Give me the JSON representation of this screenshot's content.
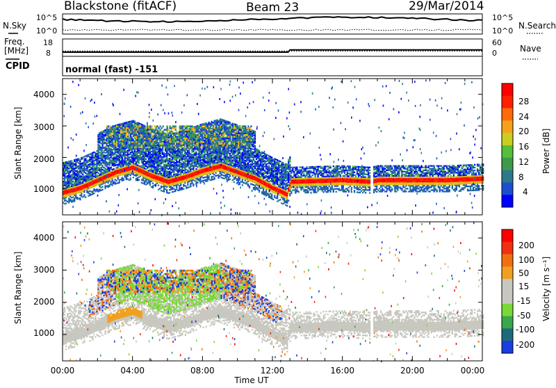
{
  "header": {
    "station": "Blackstone (fitACF)",
    "beam": "Beam 23",
    "date": "29/Mar/2014"
  },
  "left_labels": {
    "nsky": "N.Sky",
    "freq": "Freq.",
    "freq_unit": "[MHz]",
    "cpid": "CPID"
  },
  "right_labels": {
    "nsearch": "N.Search",
    "nave": "Nave"
  },
  "cpid_text": "normal (fast) -151",
  "noise_panel": {
    "left_ticks": [
      "10^5",
      "10^0"
    ],
    "right_ticks": [
      "10^5",
      "10^0"
    ]
  },
  "freq_panel": {
    "left_ticks": [
      "18",
      "8"
    ],
    "right_ticks": [
      "60",
      "0"
    ]
  },
  "x_axis": {
    "title": "Time UT",
    "ticks": [
      "00:00",
      "04:00",
      "08:00",
      "12:00",
      "16:00",
      "20:00",
      "00:00"
    ]
  },
  "power_panel": {
    "ylabel": "Slant Range [km]",
    "yticks": [
      "4000",
      "3000",
      "2000",
      "1000"
    ],
    "colorbar_label": "Power [dB]",
    "colorbar_ticks": [
      "28",
      "24",
      "20",
      "16",
      "12",
      "8",
      "4"
    ],
    "colors": [
      "#0000ff",
      "#1c4fcf",
      "#2a7a8a",
      "#3c9a4a",
      "#56bf3a",
      "#c8cf20",
      "#f3a31a",
      "#ff6a0a",
      "#ff2000",
      "#ff0000"
    ]
  },
  "velocity_panel": {
    "ylabel": "Slant Range [km]",
    "yticks": [
      "4000",
      "3000",
      "2000",
      "1000"
    ],
    "colorbar_label": "Velocity [m s⁻¹]",
    "colorbar_ticks": [
      "200",
      "100",
      "50",
      "15",
      "-15",
      "-50",
      "-100",
      "-200"
    ],
    "colors": [
      "#1a3ce0",
      "#1f6a7a",
      "#38a84a",
      "#7ad838",
      "#c8c8c0",
      "#c8c8c0",
      "#f0a020",
      "#f07010",
      "#f03010",
      "#ff0000"
    ]
  },
  "chart_data": {
    "type": "heatmap",
    "title": "Blackstone (fitACF)  Beam 23  29/Mar/2014",
    "xlabel": "Time UT",
    "ylabel": "Slant Range [km]",
    "x_range_hours": [
      0,
      24
    ],
    "y_range_km": [
      180,
      4500
    ],
    "x_ticks": [
      "00:00",
      "04:00",
      "08:00",
      "12:00",
      "16:00",
      "20:00",
      "00:00"
    ],
    "y_ticks": [
      1000,
      2000,
      3000,
      4000
    ],
    "panels": [
      {
        "name": "Power [dB]",
        "colorbar_range": [
          0,
          32
        ],
        "colorbar_ticks": [
          4,
          8,
          12,
          16,
          20,
          24,
          28
        ],
        "main_echo_band": {
          "time_h": [
            0,
            1,
            2,
            3,
            4,
            5,
            6,
            7,
            8,
            9,
            10,
            11,
            12,
            12.8,
            13,
            16,
            17.6,
            18,
            20,
            22,
            24
          ],
          "range_km": [
            850,
            1000,
            1250,
            1500,
            1650,
            1400,
            1200,
            1350,
            1550,
            1700,
            1500,
            1300,
            1000,
            800,
            1200,
            1250,
            1200,
            1250,
            1250,
            1250,
            1300
          ]
        }
      },
      {
        "name": "Velocity [m s-1]",
        "colorbar_range": [
          -250,
          250
        ],
        "colorbar_ticks": [
          -200,
          -100,
          -50,
          -15,
          15,
          50,
          100,
          200
        ]
      }
    ],
    "freq_mhz": {
      "time_h": [
        0,
        12.9,
        13,
        24
      ],
      "value": [
        10.8,
        10.8,
        12.6,
        12.6
      ]
    },
    "nave": {
      "time_h": [
        0,
        24
      ],
      "value": [
        22,
        22
      ]
    }
  }
}
